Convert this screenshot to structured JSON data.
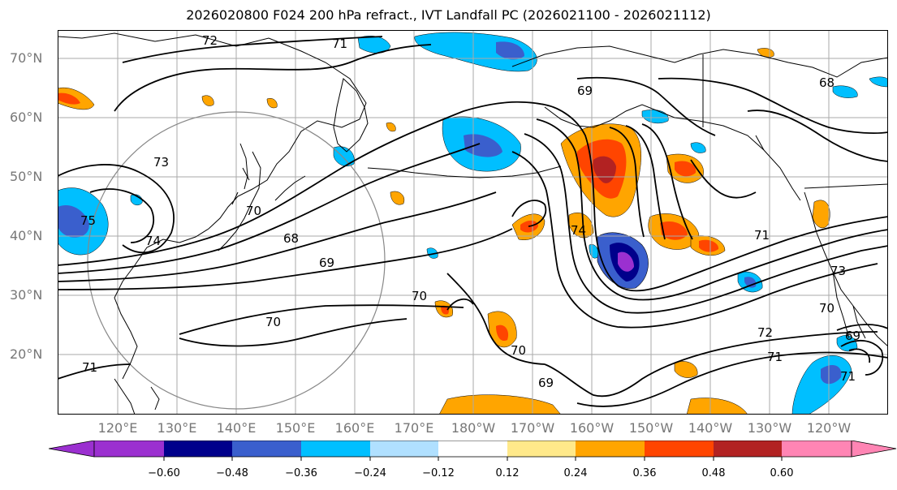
{
  "title": "2026020800 F024 200 hPa refract., IVT Landfall PC (2026021100 - 2026021112)",
  "axes": {
    "lat_labels": [
      "70°N",
      "60°N",
      "50°N",
      "40°N",
      "30°N",
      "20°N"
    ],
    "lon_labels": [
      "120°E",
      "130°E",
      "140°E",
      "150°E",
      "160°E",
      "170°E",
      "180°W",
      "170°W",
      "160°W",
      "150°W",
      "140°W",
      "130°W",
      "120°W"
    ]
  },
  "colorbar": {
    "ticks": [
      "−0.60",
      "−0.48",
      "−0.36",
      "−0.24",
      "−0.12",
      "0.12",
      "0.24",
      "0.36",
      "0.48",
      "0.60"
    ],
    "colors": [
      "#9b30d0",
      "#00008b",
      "#3a5fcd",
      "#00bfff",
      "#b0e0ff",
      "#ffffff",
      "#ffe98a",
      "#ffa500",
      "#ff4500",
      "#b22222",
      "#ff85b4",
      "#ff85b4"
    ]
  },
  "contour_labels": [
    "72",
    "71",
    "69",
    "68",
    "73",
    "70",
    "75",
    "74",
    "68",
    "69",
    "70",
    "70",
    "71",
    "70",
    "69",
    "74",
    "71",
    "73",
    "72",
    "71",
    "70",
    "69",
    "71"
  ],
  "colors": {
    "grid": "#aaaaaa",
    "contour": "#000000",
    "coast": "#000000",
    "circle": "#888888"
  }
}
